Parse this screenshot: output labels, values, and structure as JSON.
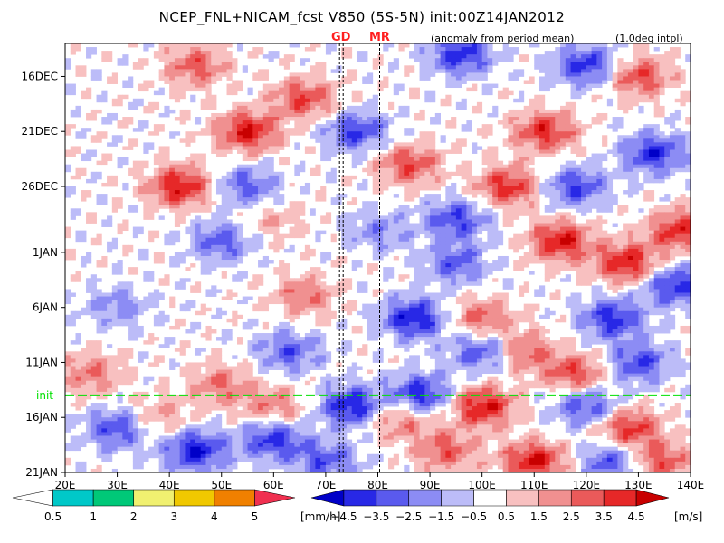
{
  "chart_data": {
    "type": "heatmap",
    "title": "NCEP_FNL+NICAM_fcst V850 (5S-5N) init:00Z14JAN2012",
    "subtitle_left": "(anomaly from period mean)",
    "subtitle_right": "(1.0deg intpl)",
    "x_axis": {
      "range": [
        20,
        140
      ],
      "ticks": [
        {
          "value": 20,
          "label": "20E"
        },
        {
          "value": 30,
          "label": "30E"
        },
        {
          "value": 40,
          "label": "40E"
        },
        {
          "value": 50,
          "label": "50E"
        },
        {
          "value": 60,
          "label": "60E"
        },
        {
          "value": 70,
          "label": "70E"
        },
        {
          "value": 80,
          "label": "80E"
        },
        {
          "value": 90,
          "label": "90E"
        },
        {
          "value": 100,
          "label": "100E"
        },
        {
          "value": 110,
          "label": "110E"
        },
        {
          "value": 120,
          "label": "120E"
        },
        {
          "value": 130,
          "label": "130E"
        },
        {
          "value": 140,
          "label": "140E"
        }
      ]
    },
    "y_axis": {
      "range": [
        "2011-12-13",
        "2012-01-21"
      ],
      "direction": "time increases downward",
      "ticks": [
        {
          "value": "2011-12-16",
          "label": "16DEC"
        },
        {
          "value": "2011-12-21",
          "label": "21DEC"
        },
        {
          "value": "2011-12-26",
          "label": "26DEC"
        },
        {
          "value": "2012-01-01",
          "label": "1JAN"
        },
        {
          "value": "2012-01-06",
          "label": "6JAN"
        },
        {
          "value": "2012-01-11",
          "label": "11JAN"
        },
        {
          "value": "2012-01-16",
          "label": "16JAN"
        },
        {
          "value": "2012-01-21",
          "label": "21JAN"
        }
      ]
    },
    "init_line": {
      "label": "init",
      "date": "2012-01-14",
      "color": "#00e000"
    },
    "site_lines": [
      {
        "label": "GD",
        "lon": 73
      },
      {
        "label": "MR",
        "lon": 80
      }
    ],
    "wind_colorbar": {
      "unit": "[m/s]",
      "tick_labels": [
        "−4.5",
        "−3.5",
        "−2.5",
        "−1.5",
        "−0.5",
        "0.5",
        "1.5",
        "2.5",
        "3.5",
        "4.5"
      ],
      "colors": [
        "#0000c8",
        "#2828e6",
        "#5a5aee",
        "#8c8cf4",
        "#bcbcf8",
        "#ffffff",
        "#f8c0c0",
        "#f09090",
        "#ea5a5a",
        "#e62828",
        "#c80000"
      ]
    },
    "rain_colorbar": {
      "unit": "[mm/h]",
      "tick_labels": [
        "0.5",
        "1",
        "2",
        "3",
        "4",
        "5"
      ],
      "colors": [
        "#ffffff",
        "#00c8c8",
        "#00c878",
        "#f0f070",
        "#f0c800",
        "#f08000",
        "#f03050"
      ]
    },
    "features": [
      {
        "x": 55,
        "y": "2011-12-21",
        "value": 4.5
      },
      {
        "x": 42,
        "y": "2011-12-26",
        "value": 4.5
      },
      {
        "x": 66,
        "y": "2011-12-18",
        "value": 3.5
      },
      {
        "x": 45,
        "y": "2011-12-15",
        "value": 3.0
      },
      {
        "x": 105,
        "y": "2011-12-26",
        "value": 4.0
      },
      {
        "x": 115,
        "y": "2011-12-31",
        "value": 4.5
      },
      {
        "x": 128,
        "y": "2012-01-02",
        "value": 4.5
      },
      {
        "x": 112,
        "y": "2011-12-21",
        "value": 4.0
      },
      {
        "x": 138,
        "y": "2011-12-30",
        "value": 4.0
      },
      {
        "x": 130,
        "y": "2011-12-16",
        "value": 3.5
      },
      {
        "x": 86,
        "y": "2011-12-24",
        "value": 3.5
      },
      {
        "x": 66,
        "y": "2012-01-05",
        "value": 2.5
      },
      {
        "x": 25,
        "y": "2012-01-12",
        "value": 2.5
      },
      {
        "x": 100,
        "y": "2012-01-07",
        "value": 3.0
      },
      {
        "x": 108,
        "y": "2012-01-10",
        "value": 3.0
      },
      {
        "x": 118,
        "y": "2012-01-12",
        "value": 3.5
      },
      {
        "x": 100,
        "y": "2012-01-15",
        "value": 4.5
      },
      {
        "x": 110,
        "y": "2012-01-20",
        "value": 4.5
      },
      {
        "x": 128,
        "y": "2012-01-17",
        "value": 4.0
      },
      {
        "x": 134,
        "y": "2012-01-20",
        "value": 3.5
      },
      {
        "x": 84,
        "y": "2012-01-16",
        "value": 3.0
      },
      {
        "x": 93,
        "y": "2012-01-19",
        "value": 3.0
      },
      {
        "x": 60,
        "y": "2012-01-15",
        "value": 2.5
      },
      {
        "x": 38,
        "y": "2012-01-16",
        "value": 2.0
      },
      {
        "x": 96,
        "y": "2011-12-14",
        "value": -4.0
      },
      {
        "x": 120,
        "y": "2011-12-15",
        "value": -4.0
      },
      {
        "x": 133,
        "y": "2011-12-23",
        "value": -4.0
      },
      {
        "x": 118,
        "y": "2011-12-26",
        "value": -3.5
      },
      {
        "x": 76,
        "y": "2011-12-21",
        "value": -3.5
      },
      {
        "x": 55,
        "y": "2011-12-26",
        "value": -3.0
      },
      {
        "x": 50,
        "y": "2011-12-31",
        "value": -3.0
      },
      {
        "x": 80,
        "y": "2011-12-30",
        "value": -2.0
      },
      {
        "x": 95,
        "y": "2011-12-29",
        "value": -3.5
      },
      {
        "x": 87,
        "y": "2012-01-07",
        "value": -4.5
      },
      {
        "x": 95,
        "y": "2012-01-02",
        "value": -3.0
      },
      {
        "x": 100,
        "y": "2012-01-10",
        "value": -3.5
      },
      {
        "x": 125,
        "y": "2012-01-07",
        "value": -4.0
      },
      {
        "x": 130,
        "y": "2012-01-11",
        "value": -3.5
      },
      {
        "x": 137,
        "y": "2012-01-04",
        "value": -4.0
      },
      {
        "x": 63,
        "y": "2012-01-10",
        "value": -3.0
      },
      {
        "x": 30,
        "y": "2012-01-06",
        "value": -2.0
      },
      {
        "x": 45,
        "y": "2012-01-19",
        "value": -4.5
      },
      {
        "x": 30,
        "y": "2012-01-17",
        "value": -3.5
      },
      {
        "x": 60,
        "y": "2012-01-18",
        "value": -4.0
      },
      {
        "x": 75,
        "y": "2012-01-15",
        "value": -4.5
      },
      {
        "x": 88,
        "y": "2012-01-14",
        "value": -4.5
      },
      {
        "x": 120,
        "y": "2012-01-15",
        "value": -3.5
      },
      {
        "x": 125,
        "y": "2012-01-20",
        "value": -3.5
      },
      {
        "x": 70,
        "y": "2012-01-20",
        "value": -3.0
      },
      {
        "x": 50,
        "y": "2012-01-13",
        "value": 2.5
      },
      {
        "x": 60,
        "y": "2011-12-29",
        "value": 1.5
      }
    ]
  }
}
